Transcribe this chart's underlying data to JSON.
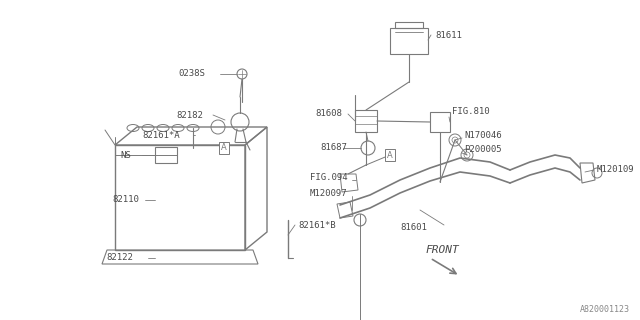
{
  "bg_color": "#ffffff",
  "line_color": "#7a7a7a",
  "text_color": "#4a4a4a",
  "watermark": "A820001123",
  "font_size": 6.5,
  "diagram_color": "#7a7a7a",
  "figsize": [
    6.4,
    3.2
  ],
  "dpi": 100,
  "xlim": [
    0,
    640
  ],
  "ylim": [
    320,
    0
  ]
}
